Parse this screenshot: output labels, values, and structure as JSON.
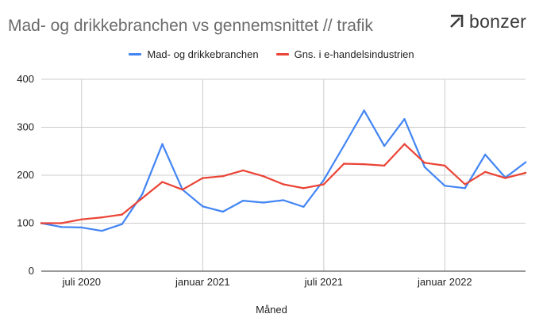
{
  "header": {
    "title": "Mad- og drikkebranchen vs gennemsnittet // trafik",
    "brand": "bonzer"
  },
  "colors": {
    "series1": "#4285f4",
    "series2": "#ea4335",
    "grid": "#cccccc",
    "axis": "#333333"
  },
  "chart_data": {
    "type": "line",
    "title": "Mad- og drikkebranchen vs gennemsnittet // trafik",
    "xlabel": "Måned",
    "ylabel": "",
    "ylim": [
      0,
      400
    ],
    "yticks": [
      0,
      100,
      200,
      300,
      400
    ],
    "x_tick_labels": [
      {
        "label": "juli 2020",
        "index": 2
      },
      {
        "label": "januar 2021",
        "index": 8
      },
      {
        "label": "juli 2021",
        "index": 14
      },
      {
        "label": "januar 2022",
        "index": 20
      }
    ],
    "x": [
      "2020-05",
      "2020-06",
      "2020-07",
      "2020-08",
      "2020-09",
      "2020-10",
      "2020-11",
      "2020-12",
      "2021-01",
      "2021-02",
      "2021-03",
      "2021-04",
      "2021-05",
      "2021-06",
      "2021-07",
      "2021-08",
      "2021-09",
      "2021-10",
      "2021-11",
      "2021-12",
      "2022-01",
      "2022-02",
      "2022-03",
      "2022-04",
      "2022-05"
    ],
    "series": [
      {
        "name": "Mad- og drikkebranchen",
        "values": [
          100,
          92,
          91,
          84,
          98,
          160,
          265,
          170,
          135,
          124,
          147,
          143,
          148,
          134,
          190,
          262,
          335,
          261,
          317,
          217,
          178,
          173,
          243,
          195,
          227
        ]
      },
      {
        "name": "Gns. i e-handelsindustrien",
        "values": [
          100,
          100,
          108,
          112,
          118,
          152,
          186,
          170,
          194,
          198,
          210,
          198,
          181,
          173,
          181,
          224,
          223,
          220,
          265,
          226,
          220,
          181,
          207,
          194,
          205
        ]
      }
    ],
    "grid": true,
    "legend": "top-center"
  }
}
